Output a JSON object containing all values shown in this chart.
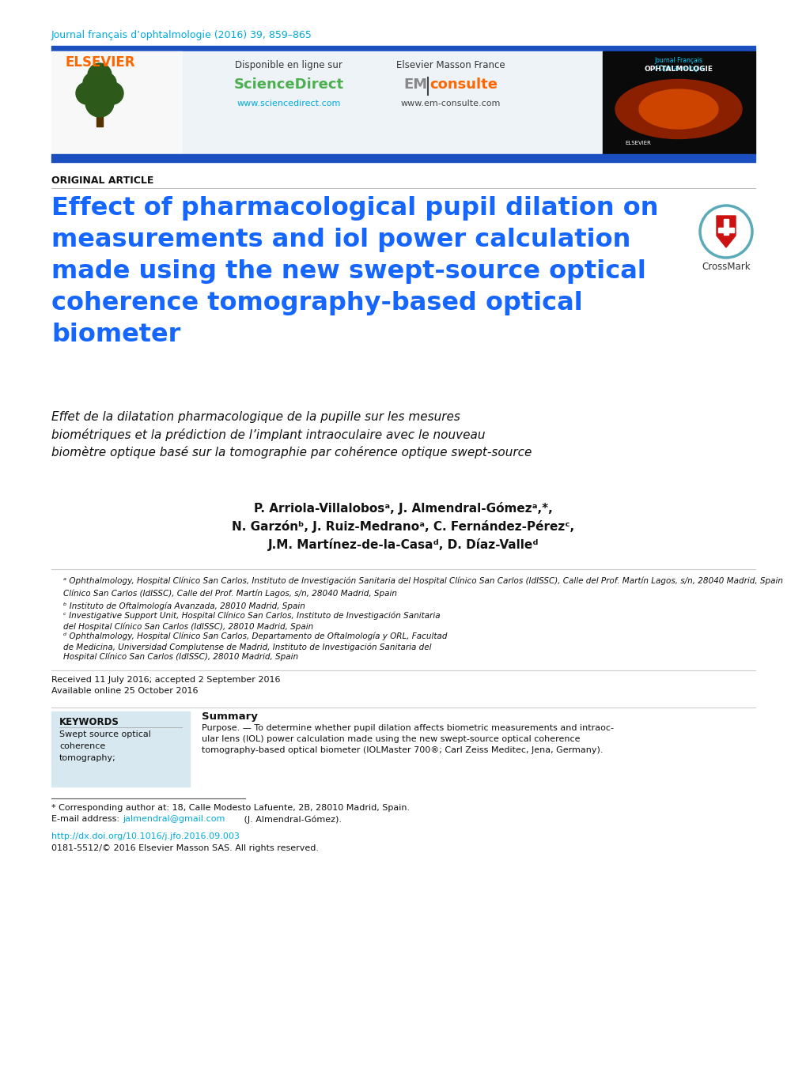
{
  "journal_line": "Journal français d’ophtalmologie (2016) 39, 859–865",
  "journal_line_color": "#00AADD",
  "header_bar_color": "#1B4FBF",
  "original_article": "ORIGINAL ARTICLE",
  "title_en": "Effect of pharmacological pupil dilation on\nmeasurements and iol power calculation\nmade using the new swept-source optical\ncoherence tomography-based optical\nbiometer",
  "title_color": "#1565FF",
  "title_fr": "Effet de la dilatation pharmacologique de la pupille sur les mesures\nbiométriques et la prédiction de l’implant intraoculaire avec le nouveau\nbiomètre optique basé sur la tomographie par cohérence optique swept-source",
  "authors_line1": "P. Arriola-Villalobosᵃ, J. Almendral-Gómezᵃ,*,",
  "authors_line2": "N. Garzónᵇ, J. Ruiz-Medranoᵃ, C. Fernández-Pérezᶜ,",
  "authors_line3": "J.M. Martínez-de-la-Casaᵈ, D. Díaz-Valleᵈ",
  "affil_a": "ᵃ Ophthalmology, Hospital Clínico San Carlos, Instituto de Investigación Sanitaria del Hospital Clínico San Carlos (IdISSC), Calle del Prof. Martín Lagos, s/n, 28040 Madrid, Spain",
  "affil_a2": "Clínico San Carlos (IdISSC), Calle del Prof. Martín Lagos, s/n, 28040 Madrid, Spain",
  "affil_b": "ᵇ Instituto de Oftalmología Avanzada, 28010 Madrid, Spain",
  "affil_c": "ᶜ Investigative Support Unit, Hospital Clínico San Carlos, Instituto de Investigación Sanitaria",
  "affil_c2": "del Hospital Clínico San Carlos (IdISSC), 28010 Madrid, Spain",
  "affil_d": "ᵈ Ophthalmology, Hospital Clínico San Carlos, Departamento de Oftalmología y ORL, Facultad",
  "affil_d2": "de Medicina, Universidad Complutense de Madrid, Instituto de Investigación Sanitaria del",
  "affil_d3": "Hospital Clínico San Carlos (IdISSC), 28010 Madrid, Spain",
  "received": "Received 11 July 2016; accepted 2 September 2016",
  "available": "Available online 25 October 2016",
  "keywords_title": "KEYWORDS",
  "keywords_text": "Swept source optical\ncoherence\ntomography;",
  "keywords_bg": "#D8E8F0",
  "summary_title": "Summary",
  "summary_line1": "Purpose. — To determine whether pupil dilation affects biometric measurements and intraoc-",
  "summary_line2": "ular lens (IOL) power calculation made using the new swept-source optical coherence",
  "summary_line3": "tomography-based optical biometer (IOLMaster 700®; Carl Zeiss Meditec, Jena, Germany).",
  "footer_corr": "* Corresponding author at: 18, Calle Modesto Lafuente, 2B, 28010 Madrid, Spain.",
  "footer_email_label": "E-mail address: ",
  "footer_email": "jalmendral@gmail.com",
  "footer_email_rest": " (J. Almendral-Gómez).",
  "footer_doi": "http://dx.doi.org/10.1016/j.jfo.2016.09.003",
  "footer_issn": "0181-5512/© 2016 Elsevier Masson SAS. All rights reserved.",
  "bg_color": "#FFFFFF",
  "header_panel_color": "#EEF3F8",
  "elsevier_color": "#FF6600",
  "sciencedirect_color": "#4CAF50",
  "emconsulte_em_color": "#888888",
  "emconsulte_consulte_color": "#FF6600",
  "text_color": "#111111"
}
